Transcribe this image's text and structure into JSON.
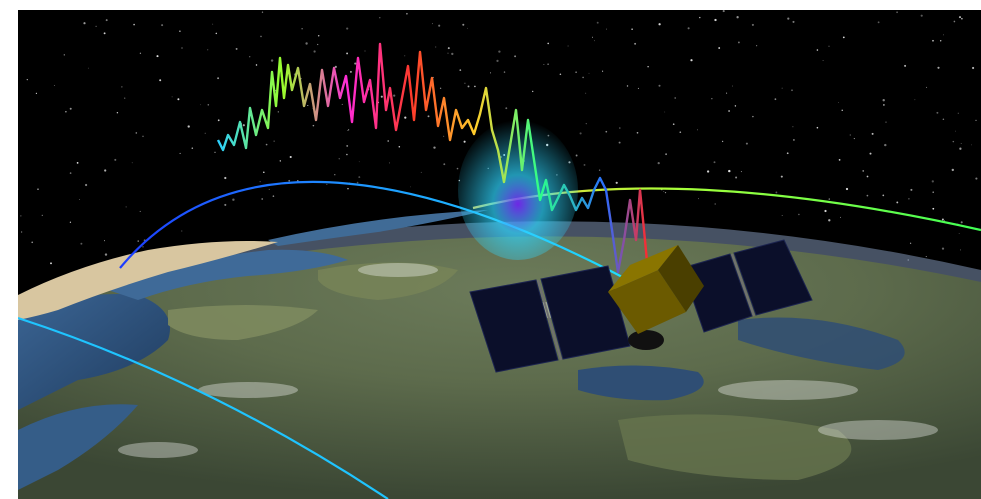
{
  "scene": {
    "background": "#000000",
    "page_background": "#ffffff",
    "objects": [
      "starfield",
      "earth-globe",
      "orbit-track-blue",
      "orbit-track-green",
      "orbit-track-cyan",
      "signal-plume",
      "spectral-signal-line",
      "satellite"
    ]
  },
  "colors": {
    "orbit_blue": "#1e6bff",
    "orbit_cyan": "#1fc4ff",
    "orbit_green": "#5cff3a",
    "plume": "#3ad2ff",
    "plume_core": "#7a2bff",
    "satellite_body": "#6b5a00",
    "solar_panel": "#0a0f2a",
    "ocean": "#2c4f7c",
    "land": "#6f7a52"
  },
  "icons": {
    "satellite": "satellite-icon",
    "signal": "signal-waveform-icon"
  }
}
